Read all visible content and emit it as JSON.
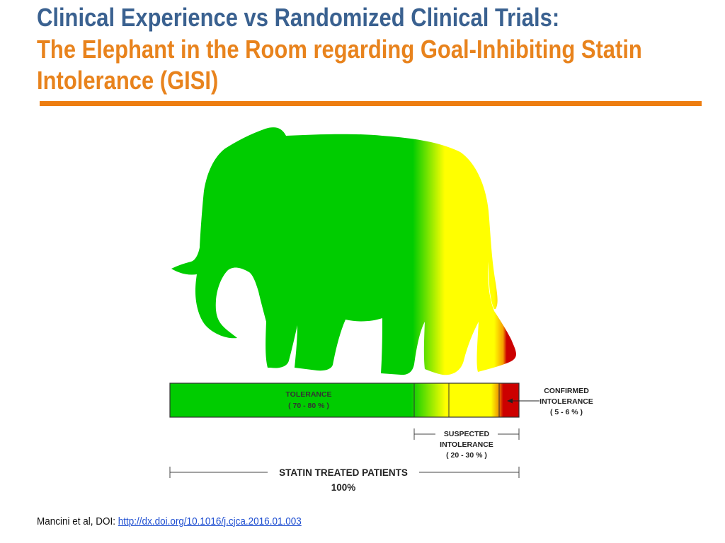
{
  "slide": {
    "title_line1": "Clinical Experience vs Randomized Clinical Trials:",
    "title_line2": "The Elephant in the Room regarding Goal-Inhibiting Statin Intolerance (GISI)",
    "colors": {
      "title_blue": "#3a6190",
      "title_orange": "#e8831d",
      "rule_orange": "#ed7d10",
      "tolerance_green": "#00cc00",
      "suspected_yellow": "#ffff00",
      "confirmed_red": "#cc0000",
      "link_blue": "#1f4fd1"
    }
  },
  "diagram": {
    "tolerance_label": "TOLERANCE",
    "tolerance_range": "( 70 - 80 % )",
    "confirmed_label_1": "CONFIRMED",
    "confirmed_label_2": "INTOLERANCE",
    "confirmed_range": "( 5 - 6 % )",
    "suspected_label_1": "SUSPECTED",
    "suspected_label_2": "INTOLERANCE",
    "suspected_range": "( 20 - 30 % )",
    "total_label": "STATIN TREATED PATIENTS",
    "total_value": "100%",
    "icon": "elephant-silhouette"
  },
  "citation": {
    "prefix": "Mancini et al, DOI: ",
    "link_text": "http://dx.doi.org/10.1016/j.cjca.2016.01.003"
  }
}
